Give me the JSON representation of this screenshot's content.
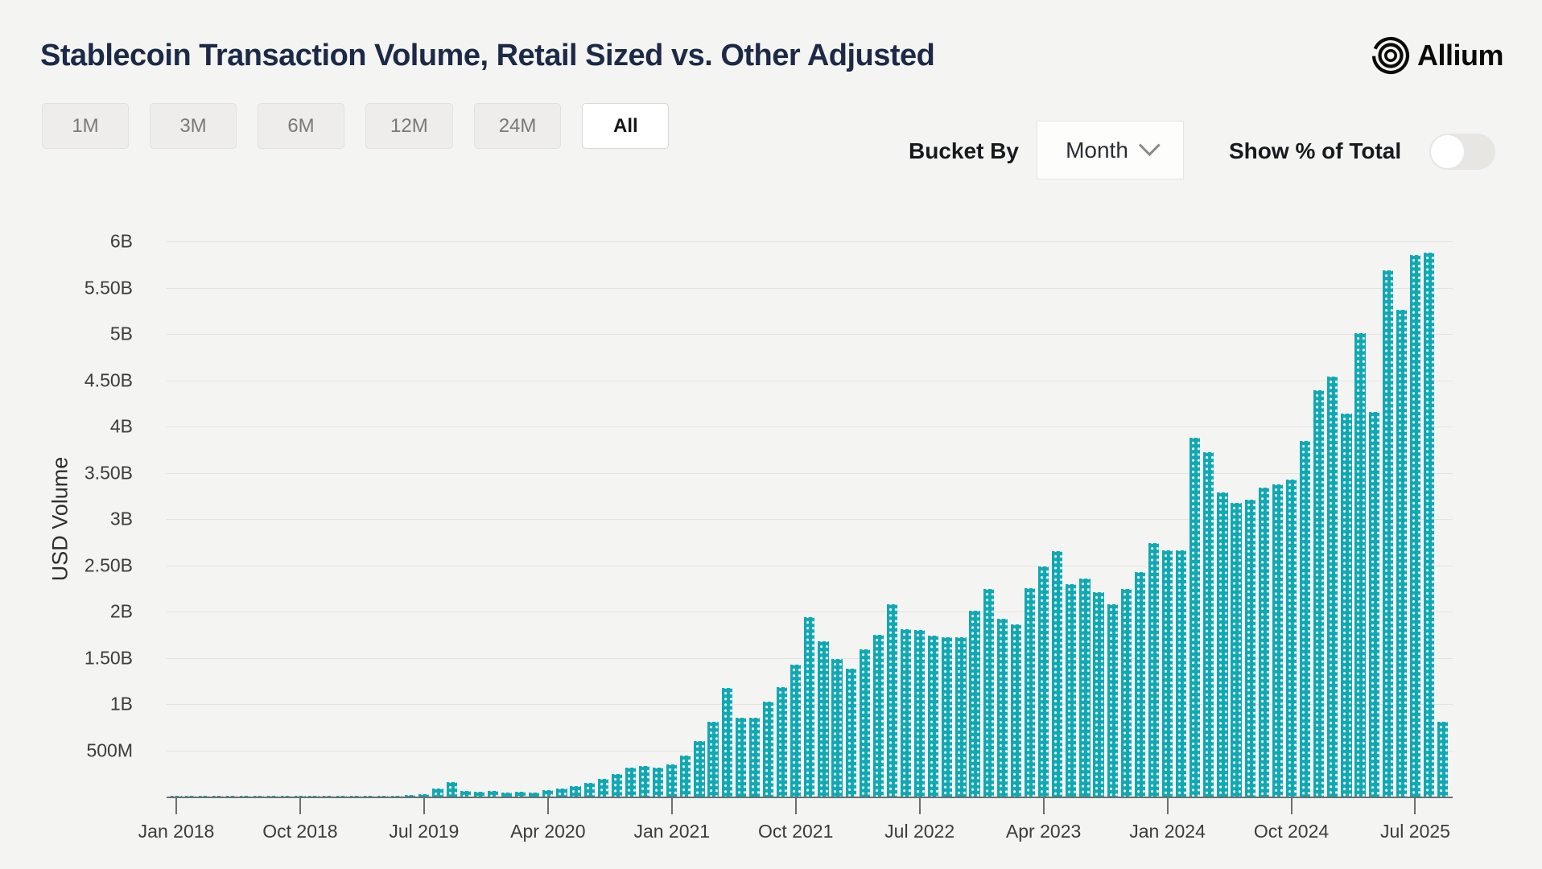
{
  "header": {
    "title": "Stablecoin Transaction Volume, Retail Sized vs. Other Adjusted",
    "brand": "Allium"
  },
  "toolbar": {
    "ranges": [
      "1M",
      "3M",
      "6M",
      "12M",
      "24M",
      "All"
    ],
    "active_range": "All",
    "bucket_by_label": "Bucket By",
    "bucket_value": "Month",
    "toggle_label": "Show % of Total",
    "toggle_on": false
  },
  "chart_data": {
    "type": "bar",
    "title": "Stablecoin Transaction Volume, Retail Sized vs. Other Adjusted",
    "xlabel": "",
    "ylabel": "USD Volume",
    "unit": "USD billions",
    "bar_color": "#10a8b3",
    "grid": true,
    "ylim": [
      0,
      6.2
    ],
    "ytick_values": [
      6,
      5.5,
      5,
      4.5,
      4,
      3.5,
      3,
      2.5,
      2,
      1.5,
      1,
      0.5
    ],
    "ytick_labels": [
      "6B",
      "5.50B",
      "5B",
      "4.50B",
      "4B",
      "3.50B",
      "3B",
      "2.50B",
      "2B",
      "1.50B",
      "1B",
      "500M"
    ],
    "xtick_labels": [
      "Jan 2018",
      "Oct 2018",
      "Jul 2019",
      "Apr 2020",
      "Jan 2021",
      "Oct 2021",
      "Jul 2022",
      "Apr 2023",
      "Jan 2024",
      "Oct 2024",
      "Jul 2025"
    ],
    "xtick_month_index": [
      0,
      9,
      18,
      27,
      36,
      45,
      54,
      63,
      72,
      81,
      90
    ],
    "months": [
      "Jan 2018",
      "Feb 2018",
      "Mar 2018",
      "Apr 2018",
      "May 2018",
      "Jun 2018",
      "Jul 2018",
      "Aug 2018",
      "Sep 2018",
      "Oct 2018",
      "Nov 2018",
      "Dec 2018",
      "Jan 2019",
      "Feb 2019",
      "Mar 2019",
      "Apr 2019",
      "May 2019",
      "Jun 2019",
      "Jul 2019",
      "Aug 2019",
      "Sep 2019",
      "Oct 2019",
      "Nov 2019",
      "Dec 2019",
      "Jan 2020",
      "Feb 2020",
      "Mar 2020",
      "Apr 2020",
      "May 2020",
      "Jun 2020",
      "Jul 2020",
      "Aug 2020",
      "Sep 2020",
      "Oct 2020",
      "Nov 2020",
      "Dec 2020",
      "Jan 2021",
      "Feb 2021",
      "Mar 2021",
      "Apr 2021",
      "May 2021",
      "Jun 2021",
      "Jul 2021",
      "Aug 2021",
      "Sep 2021",
      "Oct 2021",
      "Nov 2021",
      "Dec 2021",
      "Jan 2022",
      "Feb 2022",
      "Mar 2022",
      "Apr 2022",
      "May 2022",
      "Jun 2022",
      "Jul 2022",
      "Aug 2022",
      "Sep 2022",
      "Oct 2022",
      "Nov 2022",
      "Dec 2022",
      "Jan 2023",
      "Feb 2023",
      "Mar 2023",
      "Apr 2023",
      "May 2023",
      "Jun 2023",
      "Jul 2023",
      "Aug 2023",
      "Sep 2023",
      "Oct 2023",
      "Nov 2023",
      "Dec 2023",
      "Jan 2024",
      "Feb 2024",
      "Mar 2024",
      "Apr 2024",
      "May 2024",
      "Jun 2024",
      "Jul 2024",
      "Aug 2024",
      "Sep 2024",
      "Oct 2024",
      "Nov 2024",
      "Dec 2024",
      "Jan 2025",
      "Feb 2025",
      "Mar 2025",
      "Apr 2025",
      "May 2025",
      "Jun 2025",
      "Jul 2025",
      "Aug 2025",
      "Sep 2025"
    ],
    "values_billions": [
      0.002,
      0.002,
      0.003,
      0.003,
      0.004,
      0.004,
      0.005,
      0.005,
      0.006,
      0.006,
      0.007,
      0.008,
      0.008,
      0.009,
      0.009,
      0.01,
      0.012,
      0.02,
      0.03,
      0.09,
      0.16,
      0.058,
      0.052,
      0.065,
      0.045,
      0.05,
      0.045,
      0.07,
      0.085,
      0.11,
      0.15,
      0.19,
      0.24,
      0.31,
      0.33,
      0.31,
      0.35,
      0.44,
      0.6,
      0.81,
      1.17,
      0.85,
      0.85,
      1.03,
      1.18,
      1.43,
      1.94,
      1.68,
      1.49,
      1.38,
      1.59,
      1.75,
      2.08,
      1.81,
      1.8,
      1.74,
      1.72,
      1.72,
      2.01,
      2.24,
      1.92,
      1.86,
      2.25,
      2.49,
      2.65,
      2.3,
      2.36,
      2.21,
      2.08,
      2.24,
      2.43,
      2.74,
      2.66,
      2.66,
      3.88,
      3.72,
      3.29,
      3.17,
      3.21,
      3.34,
      3.37,
      3.43,
      3.84,
      4.39,
      4.54,
      4.14,
      5.01,
      4.16,
      5.69,
      5.26,
      5.85,
      5.88,
      0.81
    ]
  }
}
